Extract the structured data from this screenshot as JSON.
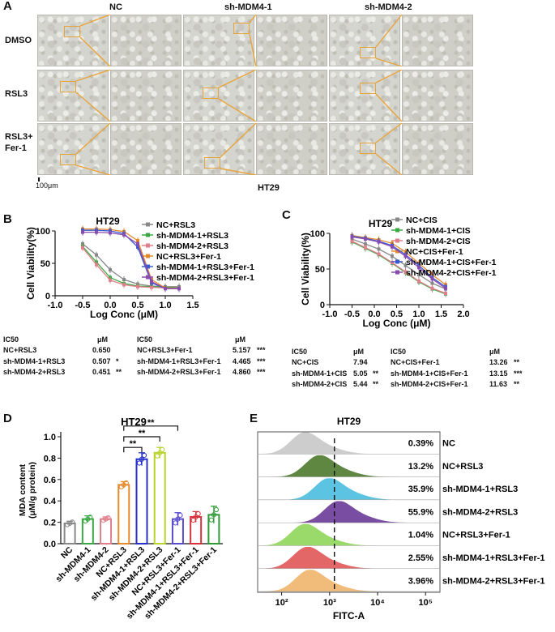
{
  "panels": {
    "A": {
      "letter": "A",
      "columns": [
        "NC",
        "sh-MDM4-1",
        "sh-MDM4-2"
      ],
      "rows": [
        "DMSO",
        "RSL3",
        "RSL3+\nFer-1"
      ],
      "scale_bar": "100μm",
      "cell_line": "HT29",
      "colors": {
        "zoom_box": "#e8a43a"
      }
    },
    "B": {
      "letter": "B",
      "ic50_header": [
        "IC50",
        "μM",
        "IC50",
        "μM"
      ],
      "ic50_left": [
        {
          "name": "NC+RSL3",
          "value": "0.650",
          "sig": ""
        },
        {
          "name": "sh-MDM4-1+RSL3",
          "value": "0.507",
          "sig": "*"
        },
        {
          "name": "sh-MDM4-2+RSL3",
          "value": "0.451",
          "sig": "**"
        }
      ],
      "ic50_right": [
        {
          "name": "NC+RSL3+Fer-1",
          "value": "5.157",
          "sig": "***"
        },
        {
          "name": "sh-MDM4-1+RSL3+Fer-1",
          "value": "4.465",
          "sig": "***"
        },
        {
          "name": "sh-MDM4-2+RSL3+Fer-1",
          "value": "4.860",
          "sig": "***"
        }
      ]
    },
    "C": {
      "letter": "C",
      "ic50_header": [
        "IC50",
        "μM",
        "IC50",
        "μM"
      ],
      "ic50_left": [
        {
          "name": "NC+CIS",
          "value": "7.94",
          "sig": ""
        },
        {
          "name": "sh-MDM4-1+CIS",
          "value": "5.05",
          "sig": "**"
        },
        {
          "name": "sh-MDM4-2+CIS",
          "value": "5.44",
          "sig": "**"
        }
      ],
      "ic50_right": [
        {
          "name": "NC+CIS+Fer-1",
          "value": "13.26",
          "sig": "**"
        },
        {
          "name": "sh-MDM4-1+CIS+Fer-1",
          "value": "13.15",
          "sig": "***"
        },
        {
          "name": "sh-MDM4-2+CIS+Fer-1",
          "value": "11.63",
          "sig": "**"
        }
      ]
    },
    "D": {
      "letter": "D",
      "sig_labels": [
        "**",
        "**",
        "**"
      ]
    },
    "E": {
      "letter": "E",
      "title": "HT29",
      "xlabel": "FITC-A",
      "rows": [
        {
          "name": "NC",
          "percent": "0.39%",
          "color": "#c8c8c8",
          "peak": 2.45
        },
        {
          "name": "NC+RSL3",
          "percent": "13.2%",
          "color": "#4e7a2c",
          "peak": 2.75
        },
        {
          "name": "sh-MDM4-1+RSL3",
          "percent": "35.9%",
          "color": "#4bbde0",
          "peak": 2.95
        },
        {
          "name": "sh-MDM4-2+RSL3",
          "percent": "55.9%",
          "color": "#6a3a98",
          "peak": 3.15
        },
        {
          "name": "NC+RSL3+Fer-1",
          "percent": "1.04%",
          "color": "#8fd65a",
          "peak": 2.45
        },
        {
          "name": "sh-MDM4-1+RSL3+Fer-1",
          "percent": "2.55%",
          "color": "#e05656",
          "peak": 2.5
        },
        {
          "name": "sh-MDM4-2+RSL3+Fer-1",
          "percent": "3.96%",
          "color": "#f0b46a",
          "peak": 2.55
        }
      ],
      "xticks": [
        "10²",
        "10³",
        "10⁴",
        "10⁵"
      ],
      "gate": 3.1
    }
  },
  "chart_data": [
    {
      "type": "line",
      "panel": "B",
      "title": "HT29",
      "xlabel": "Log Conc (μM)",
      "ylabel": "Cell Viability(%)",
      "xlim": [
        -1.0,
        1.5
      ],
      "ylim": [
        0,
        100
      ],
      "xticks": [
        "-1.0",
        "-0.5",
        "0.0",
        "0.5",
        "1.0",
        "1.5"
      ],
      "yticks": [
        "0",
        "50",
        "100"
      ],
      "legend_position": "top-right",
      "x": [
        -0.5,
        -0.25,
        0.0,
        0.25,
        0.5,
        0.75,
        1.0,
        1.25
      ],
      "series": [
        {
          "name": "NC+RSL3",
          "color": "#888888",
          "values": [
            80,
            63,
            40,
            25,
            18,
            15,
            14,
            14
          ]
        },
        {
          "name": "sh-MDM4-1+RSL3",
          "color": "#3aa843",
          "values": [
            76,
            52,
            28,
            19,
            15,
            14,
            13,
            13
          ]
        },
        {
          "name": "sh-MDM4-2+RSL3",
          "color": "#e07f8a",
          "values": [
            74,
            48,
            24,
            17,
            14,
            13,
            12,
            12
          ]
        },
        {
          "name": "NC+RSL3+Fer-1",
          "color": "#e58a2a",
          "values": [
            103,
            103,
            102,
            99,
            85,
            25,
            12,
            11
          ]
        },
        {
          "name": "sh-MDM4-1+RSL3+Fer-1",
          "color": "#3b5bd1",
          "values": [
            101,
            101,
            100,
            96,
            75,
            20,
            11,
            11
          ]
        },
        {
          "name": "sh-MDM4-2+RSL3+Fer-1",
          "color": "#8a4bb0",
          "values": [
            98,
            98,
            97,
            94,
            80,
            22,
            11,
            11
          ]
        }
      ]
    },
    {
      "type": "line",
      "panel": "C",
      "title": "HT29",
      "xlabel": "Log Conc (μM)",
      "ylabel": "Cell Viability(%)",
      "xlim": [
        -1.0,
        2.0
      ],
      "ylim": [
        0,
        100
      ],
      "xticks": [
        "-1.0",
        "-0.5",
        "0.0",
        "0.5",
        "1.0",
        "1.5",
        "2.0"
      ],
      "yticks": [
        "0",
        "50",
        "100"
      ],
      "legend_position": "top-right",
      "x": [
        -0.5,
        -0.2,
        0.1,
        0.4,
        0.7,
        1.0,
        1.3,
        1.6
      ],
      "series": [
        {
          "name": "NC+CIS",
          "color": "#888888",
          "values": [
            92,
            85,
            78,
            68,
            55,
            42,
            30,
            22
          ]
        },
        {
          "name": "sh-MDM4-1+CIS",
          "color": "#3aa843",
          "values": [
            88,
            79,
            70,
            58,
            45,
            32,
            22,
            15
          ]
        },
        {
          "name": "sh-MDM4-2+CIS",
          "color": "#e07f8a",
          "values": [
            89,
            80,
            71,
            59,
            46,
            33,
            23,
            16
          ]
        },
        {
          "name": "NC+CIS+Fer-1",
          "color": "#e58a2a",
          "values": [
            97,
            94,
            91,
            86,
            74,
            58,
            42,
            28
          ]
        },
        {
          "name": "sh-MDM4-1+CIS+Fer-1",
          "color": "#3b5bd1",
          "values": [
            96,
            93,
            89,
            83,
            70,
            55,
            38,
            25
          ]
        },
        {
          "name": "sh-MDM4-2+CIS+Fer-1",
          "color": "#8a4bb0",
          "values": [
            95,
            92,
            88,
            81,
            68,
            52,
            36,
            23
          ]
        }
      ]
    },
    {
      "type": "bar",
      "panel": "D",
      "title": "HT29",
      "ylabel": "MDA content (μM/g protein)",
      "ylim": [
        0,
        1.0
      ],
      "yticks": [
        "0.0",
        "0.2",
        "0.4",
        "0.6",
        "0.8",
        "1.0"
      ],
      "categories": [
        "NC",
        "sh-MDM4-1",
        "sh-MDM4-2",
        "NC+RSL3",
        "sh-MDM4-1+RSL3",
        "sh-MDM4-2+RSL3",
        "NC+RSL3+Fer-1",
        "sh-MDM4-1+RSL3+Fer-1",
        "sh-MDM4-2+RSL3+Fer-1"
      ],
      "values": [
        0.19,
        0.23,
        0.23,
        0.55,
        0.79,
        0.85,
        0.23,
        0.25,
        0.27
      ],
      "errors": [
        0.02,
        0.03,
        0.02,
        0.03,
        0.06,
        0.05,
        0.06,
        0.05,
        0.08
      ],
      "colors": [
        "#888888",
        "#3aa843",
        "#e07f8a",
        "#e58a2a",
        "#2430c8",
        "#b7d42a",
        "#5a4bd0",
        "#d8313c",
        "#2e9a35"
      ]
    }
  ]
}
